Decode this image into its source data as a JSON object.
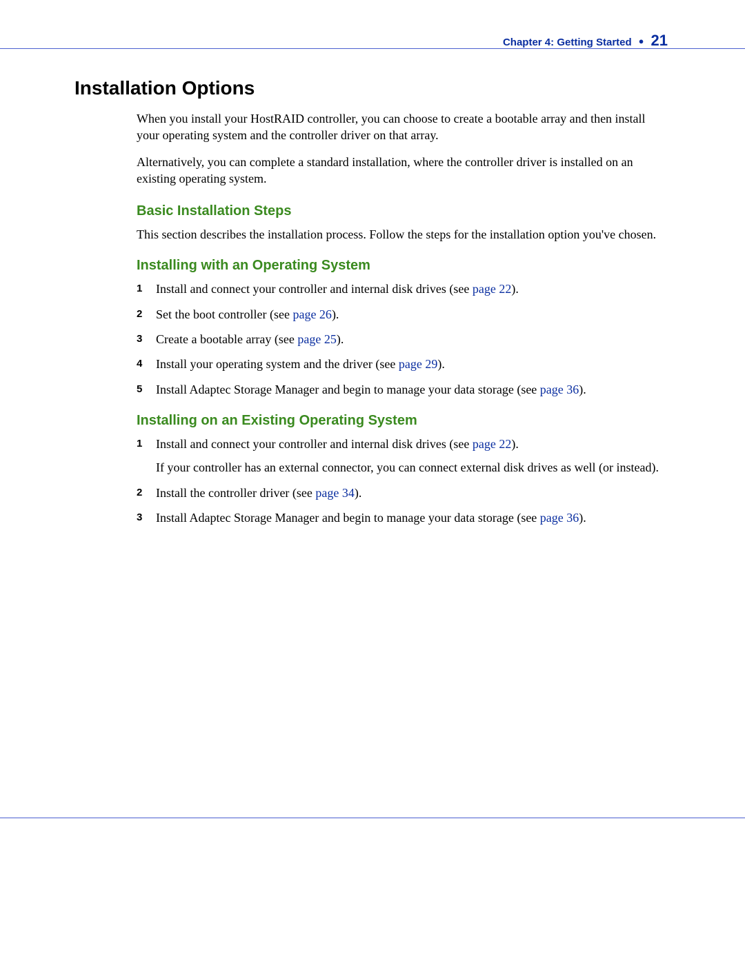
{
  "colors": {
    "rule": "#4a5fd0",
    "heading_green": "#3a8a1f",
    "link_blue": "#0a2ea0",
    "text": "#000000",
    "background": "#ffffff"
  },
  "header": {
    "chapter_label": "Chapter 4: Getting Started",
    "bullet": "●",
    "page_number": "21"
  },
  "h1": "Installation Options",
  "intro": {
    "p1": "When you install your HostRAID controller, you can choose to create a bootable array and then install your operating system and the controller driver on that array.",
    "p2": "Alternatively, you can complete a standard installation, where the controller driver is installed on an existing operating system."
  },
  "sections": {
    "basic": {
      "title": "Basic Installation Steps",
      "p1": "This section describes the installation process. Follow the steps for the installation option you've chosen."
    },
    "with_os": {
      "title": "Installing with an Operating System",
      "steps": [
        {
          "pre": "Install and connect your controller and internal disk drives (see ",
          "link": "page 22",
          "post": ")."
        },
        {
          "pre": "Set the boot controller (see ",
          "link": "page 26",
          "post": ")."
        },
        {
          "pre": "Create a bootable array (see ",
          "link": "page 25",
          "post": ")."
        },
        {
          "pre": "Install your operating system and the driver (see ",
          "link": "page 29",
          "post": ")."
        },
        {
          "pre": "Install Adaptec Storage Manager and begin to manage your data storage (see ",
          "link": "page 36",
          "post": ")."
        }
      ]
    },
    "existing_os": {
      "title": "Installing on an Existing Operating System",
      "steps": [
        {
          "pre": "Install and connect your controller and internal disk drives (see ",
          "link": "page 22",
          "post": ").",
          "sub": "If your controller has an external connector, you can connect external disk drives as well (or instead)."
        },
        {
          "pre": "Install the controller driver (see ",
          "link": "page 34",
          "post": ")."
        },
        {
          "pre": "Install Adaptec Storage Manager and begin to manage your data storage (see ",
          "link": "page 36",
          "post": ")."
        }
      ]
    }
  }
}
